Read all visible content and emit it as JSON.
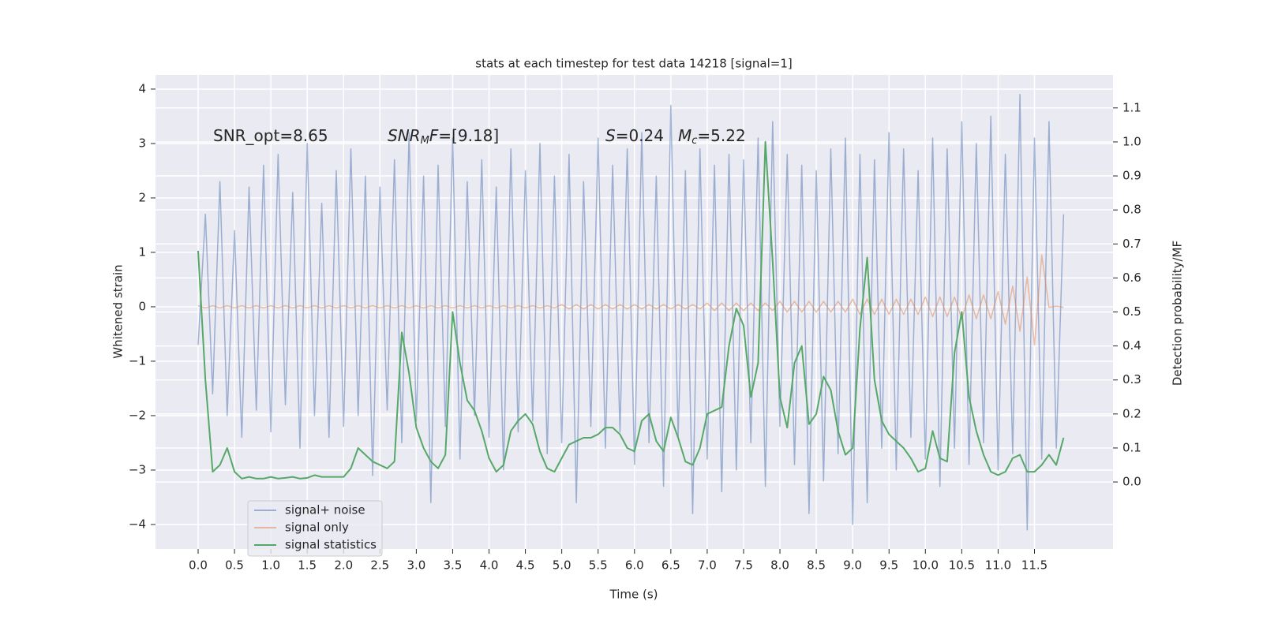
{
  "chart_data": {
    "type": "line",
    "title": "stats at each timestep for test data 14218 [signal=1]",
    "xlabel": "Time (s)",
    "ylabel": "Whitened strain",
    "y2label": "Detection probability/MF",
    "annotations": [
      [
        {
          "text": "SNR_opt=8.65"
        }
      ],
      [
        {
          "text": "SNR",
          "italic": true
        },
        {
          "text": "M",
          "italic": true,
          "sub": true
        },
        {
          "text": "F",
          "italic": true
        },
        {
          "text": "=[9.18]"
        }
      ],
      [
        {
          "text": "S",
          "italic": true
        },
        {
          "text": "=0.24"
        }
      ],
      [
        {
          "text": "M",
          "italic": true
        },
        {
          "text": "c",
          "italic": true,
          "sub": true
        },
        {
          "text": "=5.22"
        }
      ]
    ],
    "xlim": [
      -0.586,
      12.58
    ],
    "ylim": [
      -4.45,
      4.26
    ],
    "y2lim": [
      -0.197,
      1.197
    ],
    "xticks": [
      {
        "value": 0,
        "label": "0.0"
      },
      0.5,
      {
        "value": 1,
        "label": "1.0"
      },
      1.5,
      {
        "value": 2,
        "label": "2.0"
      },
      2.5,
      {
        "value": 3,
        "label": "3.0"
      },
      3.5,
      {
        "value": 4,
        "label": "4.0"
      },
      4.5,
      {
        "value": 5,
        "label": "5.0"
      },
      5.5,
      {
        "value": 6,
        "label": "6.0"
      },
      6.5,
      {
        "value": 7,
        "label": "7.0"
      },
      7.5,
      {
        "value": 8,
        "label": "8.0"
      },
      8.5,
      {
        "value": 9,
        "label": "9.0"
      },
      9.5,
      {
        "value": 10,
        "label": "10.0"
      },
      10.5,
      {
        "value": 11,
        "label": "11.0"
      },
      11.5
    ],
    "yticks": [
      {
        "value": -4,
        "label": "−4"
      },
      {
        "value": -3,
        "label": "−3"
      },
      {
        "value": -2,
        "label": "−2"
      },
      {
        "value": -1,
        "label": "−1"
      },
      0,
      1,
      2,
      3,
      4
    ],
    "y2ticks": [
      {
        "value": 0,
        "label": "0.0"
      },
      0.1,
      0.2,
      0.3,
      0.4,
      0.5,
      0.6,
      0.7,
      0.8,
      0.9,
      {
        "value": 1,
        "label": "1.0"
      },
      1.1
    ],
    "grid": true,
    "legend": "lower left",
    "x": [
      0,
      0.1,
      0.2,
      0.3,
      0.4,
      0.5,
      0.6,
      0.7,
      0.8,
      0.9,
      1,
      1.1,
      1.2,
      1.3,
      1.4,
      1.5,
      1.6,
      1.7,
      1.8,
      1.9,
      2,
      2.1,
      2.2,
      2.3,
      2.4,
      2.5,
      2.6,
      2.7,
      2.8,
      2.9,
      3,
      3.1,
      3.2,
      3.3,
      3.4,
      3.5,
      3.6,
      3.7,
      3.8,
      3.9,
      4,
      4.1,
      4.2,
      4.3,
      4.4,
      4.5,
      4.6,
      4.7,
      4.8,
      4.9,
      5,
      5.1,
      5.2,
      5.3,
      5.4,
      5.5,
      5.6,
      5.7,
      5.8,
      5.9,
      6,
      6.1,
      6.2,
      6.3,
      6.4,
      6.5,
      6.6,
      6.7,
      6.8,
      6.9,
      7,
      7.1,
      7.2,
      7.3,
      7.4,
      7.5,
      7.6,
      7.7,
      7.8,
      7.9,
      8,
      8.1,
      8.2,
      8.3,
      8.4,
      8.5,
      8.6,
      8.7,
      8.8,
      8.9,
      9,
      9.1,
      9.2,
      9.3,
      9.4,
      9.5,
      9.6,
      9.7,
      9.8,
      9.9,
      10,
      10.1,
      10.2,
      10.3,
      10.4,
      10.5,
      10.6,
      10.7,
      10.8,
      10.9,
      11,
      11.1,
      11.2,
      11.3,
      11.4,
      11.5,
      11.6,
      11.7,
      11.8,
      11.9
    ],
    "series": [
      {
        "name": "signal+ noise",
        "color": "#4c72b0",
        "opacity": 0.5,
        "values": [
          -0.7,
          1.7,
          -1.6,
          2.3,
          -2.0,
          1.4,
          -2.4,
          2.2,
          -1.9,
          2.6,
          -2.3,
          2.8,
          -1.8,
          2.1,
          -2.6,
          3.0,
          -2.0,
          1.9,
          -2.4,
          2.5,
          -2.2,
          2.9,
          -2.0,
          2.4,
          -3.1,
          2.2,
          -1.9,
          2.7,
          -2.5,
          3.2,
          -2.1,
          2.4,
          -3.6,
          2.6,
          -2.2,
          3.1,
          -2.8,
          2.3,
          -2.0,
          2.7,
          -2.4,
          2.2,
          -3.0,
          2.9,
          -2.3,
          2.5,
          -2.1,
          3.0,
          -2.7,
          2.4,
          -2.5,
          2.8,
          -3.6,
          2.3,
          -2.2,
          3.1,
          -2.6,
          2.6,
          -2.3,
          2.9,
          -2.9,
          3.2,
          -2.5,
          2.4,
          -3.3,
          3.7,
          -2.4,
          2.5,
          -3.8,
          2.9,
          -2.8,
          2.6,
          -3.4,
          2.8,
          -3.0,
          2.7,
          -2.5,
          3.1,
          -3.3,
          3.4,
          -2.2,
          2.8,
          -2.9,
          2.6,
          -3.8,
          2.5,
          -3.2,
          2.9,
          -2.7,
          3.1,
          -4.0,
          2.8,
          -3.6,
          2.7,
          -2.6,
          3.2,
          -3.0,
          2.9,
          -2.4,
          2.5,
          -2.8,
          3.1,
          -3.3,
          2.9,
          -2.6,
          3.4,
          -2.9,
          3.0,
          -2.5,
          3.5,
          -3.0,
          2.8,
          -2.7,
          3.9,
          -4.1,
          3.1,
          -2.8,
          3.4,
          -2.6,
          1.7
        ]
      },
      {
        "name": "signal only",
        "color": "#dd8452",
        "opacity": 0.5,
        "values": [
          0.02,
          -0.02,
          0.02,
          -0.02,
          0.02,
          -0.02,
          0.02,
          -0.02,
          0.02,
          -0.02,
          0.02,
          -0.02,
          0.02,
          -0.02,
          0.02,
          -0.02,
          0.02,
          -0.02,
          0.02,
          -0.02,
          0.02,
          -0.02,
          0.02,
          -0.02,
          0.02,
          -0.02,
          0.02,
          -0.02,
          0.02,
          -0.02,
          0.02,
          -0.02,
          0.02,
          -0.02,
          0.02,
          -0.02,
          0.02,
          -0.02,
          0.02,
          -0.02,
          0.02,
          -0.02,
          0.02,
          -0.02,
          0.02,
          -0.02,
          0.02,
          -0.02,
          0.02,
          -0.02,
          0.04,
          -0.04,
          0.04,
          -0.04,
          0.04,
          -0.04,
          0.04,
          -0.04,
          0.04,
          -0.04,
          0.04,
          -0.04,
          0.04,
          -0.04,
          0.04,
          -0.04,
          0.04,
          -0.04,
          0.04,
          -0.04,
          0.07,
          -0.07,
          0.07,
          -0.07,
          0.07,
          -0.07,
          0.07,
          -0.07,
          0.07,
          -0.07,
          0.1,
          -0.1,
          0.1,
          -0.1,
          0.1,
          -0.1,
          0.1,
          -0.1,
          0.1,
          -0.1,
          0.14,
          -0.14,
          0.14,
          -0.14,
          0.14,
          -0.14,
          0.14,
          -0.14,
          0.14,
          -0.14,
          0.18,
          -0.18,
          0.18,
          -0.18,
          0.18,
          -0.22,
          0.22,
          -0.22,
          0.22,
          -0.22,
          0.28,
          -0.32,
          0.38,
          -0.45,
          0.55,
          -0.7,
          0.95,
          -0.01,
          0.01,
          -0.01
        ]
      },
      {
        "name": "signal statistics",
        "color": "#55a868",
        "opacity": 1,
        "axis": "y2",
        "values": [
          0.68,
          0.3,
          0.03,
          0.05,
          0.1,
          0.03,
          0.01,
          0.015,
          0.01,
          0.01,
          0.015,
          0.01,
          0.012,
          0.015,
          0.01,
          0.012,
          0.02,
          0.015,
          0.015,
          0.015,
          0.015,
          0.04,
          0.1,
          0.08,
          0.06,
          0.05,
          0.04,
          0.06,
          0.44,
          0.32,
          0.16,
          0.1,
          0.06,
          0.04,
          0.08,
          0.5,
          0.35,
          0.24,
          0.21,
          0.15,
          0.07,
          0.03,
          0.05,
          0.15,
          0.18,
          0.2,
          0.17,
          0.09,
          0.04,
          0.03,
          0.07,
          0.11,
          0.12,
          0.13,
          0.13,
          0.14,
          0.16,
          0.16,
          0.14,
          0.1,
          0.09,
          0.18,
          0.2,
          0.12,
          0.09,
          0.19,
          0.13,
          0.06,
          0.05,
          0.1,
          0.2,
          0.21,
          0.22,
          0.4,
          0.51,
          0.46,
          0.25,
          0.35,
          1.0,
          0.65,
          0.25,
          0.16,
          0.35,
          0.4,
          0.17,
          0.2,
          0.31,
          0.27,
          0.15,
          0.08,
          0.1,
          0.45,
          0.66,
          0.3,
          0.18,
          0.14,
          0.12,
          0.1,
          0.07,
          0.03,
          0.04,
          0.15,
          0.07,
          0.06,
          0.38,
          0.5,
          0.25,
          0.15,
          0.08,
          0.03,
          0.02,
          0.03,
          0.07,
          0.08,
          0.03,
          0.03,
          0.05,
          0.08,
          0.05,
          0.13
        ]
      }
    ]
  }
}
